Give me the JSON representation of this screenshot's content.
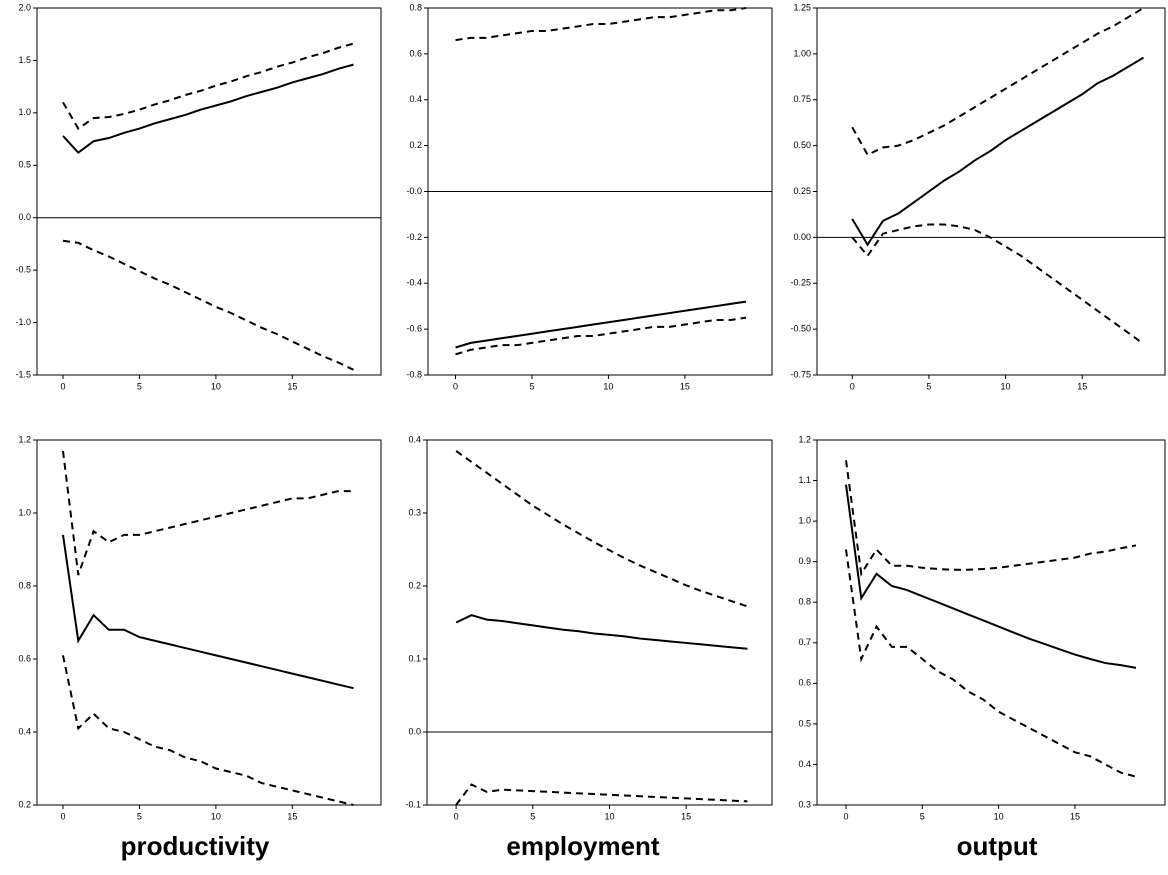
{
  "chart_data": [
    {
      "type": "line",
      "x": [
        0,
        1,
        2,
        3,
        4,
        5,
        6,
        7,
        8,
        9,
        10,
        11,
        12,
        13,
        14,
        15,
        16,
        17,
        18,
        19
      ],
      "xlim": [
        -1.7,
        20.8
      ],
      "xticks": [
        0,
        5,
        10,
        15
      ],
      "ylim": [
        -1.5,
        2.0
      ],
      "yticks": [
        -1.5,
        -0.5,
        {
          "value": -1.0,
          "label": "-1.0"
        },
        {
          "value": 0,
          "label": "0.0"
        },
        0.5,
        {
          "value": 1.0,
          "label": "1.0"
        },
        1.5,
        {
          "value": 2.0,
          "label": "2.0"
        }
      ],
      "zero_line": true,
      "series": [
        {
          "color": "#000000",
          "line_style": "solid",
          "values": [
            0.78,
            0.62,
            0.73,
            0.76,
            0.81,
            0.85,
            0.9,
            0.94,
            0.98,
            1.03,
            1.07,
            1.11,
            1.16,
            1.2,
            1.24,
            1.29,
            1.33,
            1.37,
            1.42,
            1.46
          ]
        },
        {
          "color": "#000000",
          "line_style": "dashed",
          "values": [
            1.1,
            0.85,
            0.95,
            0.96,
            0.99,
            1.03,
            1.08,
            1.12,
            1.17,
            1.21,
            1.26,
            1.3,
            1.35,
            1.39,
            1.44,
            1.48,
            1.53,
            1.57,
            1.62,
            1.66
          ]
        },
        {
          "color": "#000000",
          "line_style": "dashed",
          "values": [
            -0.22,
            -0.24,
            -0.31,
            -0.37,
            -0.44,
            -0.51,
            -0.58,
            -0.64,
            -0.71,
            -0.78,
            -0.85,
            -0.91,
            -0.98,
            -1.05,
            -1.11,
            -1.18,
            -1.25,
            -1.32,
            -1.38,
            -1.45
          ]
        }
      ]
    },
    {
      "type": "line",
      "x": [
        0,
        1,
        2,
        3,
        4,
        5,
        6,
        7,
        8,
        9,
        10,
        11,
        12,
        13,
        14,
        15,
        16,
        17,
        18,
        19
      ],
      "xlim": [
        -1.8,
        20.7
      ],
      "xticks": [
        0,
        5,
        10,
        15
      ],
      "ylim": [
        -0.8,
        0.8
      ],
      "yticks": [
        -0.8,
        -0.6,
        -0.4,
        -0.2,
        {
          "value": 0,
          "label": "-0.0"
        },
        0.2,
        0.4,
        0.6,
        0.8
      ],
      "zero_line": true,
      "series": [
        {
          "color": "#000000",
          "line_style": "solid",
          "values": [
            -0.68,
            -0.66,
            -0.65,
            -0.64,
            -0.63,
            -0.62,
            -0.61,
            -0.6,
            -0.59,
            -0.58,
            -0.57,
            -0.56,
            -0.55,
            -0.54,
            -0.53,
            -0.52,
            -0.51,
            -0.5,
            -0.49,
            -0.48
          ]
        },
        {
          "color": "#000000",
          "line_style": "dashed",
          "values": [
            0.66,
            0.67,
            0.67,
            0.68,
            0.69,
            0.7,
            0.7,
            0.71,
            0.72,
            0.73,
            0.73,
            0.74,
            0.75,
            0.76,
            0.76,
            0.77,
            0.78,
            0.79,
            0.79,
            0.8
          ]
        },
        {
          "color": "#000000",
          "line_style": "dashed",
          "values": [
            -0.71,
            -0.69,
            -0.68,
            -0.67,
            -0.67,
            -0.66,
            -0.65,
            -0.64,
            -0.63,
            -0.63,
            -0.62,
            -0.61,
            -0.6,
            -0.59,
            -0.59,
            -0.58,
            -0.57,
            -0.56,
            -0.56,
            -0.55
          ]
        }
      ]
    },
    {
      "type": "line",
      "x": [
        0,
        1,
        2,
        3,
        4,
        5,
        6,
        7,
        8,
        9,
        10,
        11,
        12,
        13,
        14,
        15,
        16,
        17,
        18,
        19
      ],
      "xlim": [
        -2.3,
        20.4
      ],
      "xticks": [
        0,
        5,
        10,
        15
      ],
      "ylim": [
        -0.75,
        1.25
      ],
      "yticks": [
        -0.75,
        {
          "value": -0.5,
          "label": "-0.50"
        },
        -0.25,
        {
          "value": 0,
          "label": "0.00"
        },
        0.25,
        {
          "value": 0.5,
          "label": "0.50"
        },
        0.75,
        {
          "value": 1.0,
          "label": "1.00"
        },
        1.25
      ],
      "zero_line": true,
      "series": [
        {
          "color": "#000000",
          "line_style": "solid",
          "values": [
            0.1,
            -0.04,
            0.09,
            0.13,
            0.19,
            0.25,
            0.31,
            0.36,
            0.42,
            0.47,
            0.53,
            0.58,
            0.63,
            0.68,
            0.73,
            0.78,
            0.84,
            0.88,
            0.93,
            0.98
          ]
        },
        {
          "color": "#000000",
          "line_style": "dashed",
          "values": [
            0.6,
            0.45,
            0.49,
            0.5,
            0.53,
            0.57,
            0.61,
            0.66,
            0.71,
            0.76,
            0.81,
            0.86,
            0.91,
            0.96,
            1.01,
            1.06,
            1.11,
            1.15,
            1.2,
            1.25
          ]
        },
        {
          "color": "#000000",
          "line_style": "dashed",
          "values": [
            0.0,
            -0.1,
            0.02,
            0.04,
            0.06,
            0.07,
            0.07,
            0.06,
            0.04,
            0.0,
            -0.05,
            -0.1,
            -0.16,
            -0.22,
            -0.28,
            -0.34,
            -0.4,
            -0.46,
            -0.52,
            -0.58
          ]
        }
      ]
    },
    {
      "type": "line",
      "x": [
        0,
        1,
        2,
        3,
        4,
        5,
        6,
        7,
        8,
        9,
        10,
        11,
        12,
        13,
        14,
        15,
        16,
        17,
        18,
        19
      ],
      "xlim": [
        -1.7,
        20.8
      ],
      "xticks": [
        0,
        5,
        10,
        15
      ],
      "ylim": [
        0.2,
        1.2
      ],
      "yticks": [
        0.2,
        0.4,
        0.6,
        0.8,
        {
          "value": 1.0,
          "label": "1.0"
        },
        1.2
      ],
      "zero_line": true,
      "series": [
        {
          "color": "#000000",
          "line_style": "solid",
          "values": [
            0.94,
            0.65,
            0.72,
            0.68,
            0.68,
            0.66,
            0.65,
            0.64,
            0.63,
            0.62,
            0.61,
            0.6,
            0.59,
            0.58,
            0.57,
            0.56,
            0.55,
            0.54,
            0.53,
            0.52
          ]
        },
        {
          "color": "#000000",
          "line_style": "dashed",
          "values": [
            1.17,
            0.83,
            0.95,
            0.92,
            0.94,
            0.94,
            0.95,
            0.96,
            0.97,
            0.98,
            0.99,
            1.0,
            1.01,
            1.02,
            1.03,
            1.04,
            1.04,
            1.05,
            1.06,
            1.06
          ]
        },
        {
          "color": "#000000",
          "line_style": "dashed",
          "values": [
            0.61,
            0.41,
            0.45,
            0.41,
            0.4,
            0.38,
            0.36,
            0.35,
            0.33,
            0.32,
            0.3,
            0.29,
            0.28,
            0.26,
            0.25,
            0.24,
            0.23,
            0.22,
            0.21,
            0.2
          ]
        }
      ]
    },
    {
      "type": "line",
      "x": [
        0,
        1,
        2,
        3,
        4,
        5,
        6,
        7,
        8,
        9,
        10,
        11,
        12,
        13,
        14,
        15,
        16,
        17,
        18,
        19
      ],
      "xlim": [
        -1.9,
        20.6
      ],
      "xticks": [
        0,
        5,
        10,
        15
      ],
      "ylim": [
        -0.1,
        0.4
      ],
      "yticks": [
        -0.1,
        {
          "value": 0,
          "label": "0.0"
        },
        0.1,
        0.2,
        0.3,
        0.4
      ],
      "zero_line": true,
      "series": [
        {
          "color": "#000000",
          "line_style": "solid",
          "values": [
            0.15,
            0.16,
            0.154,
            0.152,
            0.149,
            0.146,
            0.143,
            0.14,
            0.138,
            0.135,
            0.133,
            0.131,
            0.128,
            0.126,
            0.124,
            0.122,
            0.12,
            0.118,
            0.116,
            0.114
          ]
        },
        {
          "color": "#000000",
          "line_style": "dashed",
          "values": [
            0.385,
            0.37,
            0.355,
            0.34,
            0.325,
            0.31,
            0.297,
            0.284,
            0.272,
            0.26,
            0.249,
            0.238,
            0.228,
            0.219,
            0.21,
            0.201,
            0.193,
            0.186,
            0.179,
            0.172
          ]
        },
        {
          "color": "#000000",
          "line_style": "dashed",
          "values": [
            -0.1,
            -0.072,
            -0.082,
            -0.079,
            -0.08,
            -0.081,
            -0.082,
            -0.083,
            -0.084,
            -0.085,
            -0.086,
            -0.087,
            -0.088,
            -0.089,
            -0.09,
            -0.091,
            -0.092,
            -0.093,
            -0.094,
            -0.095
          ]
        }
      ]
    },
    {
      "type": "line",
      "x": [
        0,
        1,
        2,
        3,
        4,
        5,
        6,
        7,
        8,
        9,
        10,
        11,
        12,
        13,
        14,
        15,
        16,
        17,
        18,
        19
      ],
      "xlim": [
        -1.9,
        20.9
      ],
      "xticks": [
        0,
        5,
        10,
        15
      ],
      "ylim": [
        0.3,
        1.2
      ],
      "yticks": [
        0.3,
        0.4,
        0.5,
        0.6,
        0.7,
        0.8,
        0.9,
        {
          "value": 1.0,
          "label": "1.0"
        },
        1.1,
        1.2
      ],
      "zero_line": true,
      "series": [
        {
          "color": "#000000",
          "line_style": "solid",
          "values": [
            1.09,
            0.81,
            0.87,
            0.84,
            0.83,
            0.815,
            0.8,
            0.785,
            0.77,
            0.755,
            0.74,
            0.725,
            0.71,
            0.697,
            0.684,
            0.671,
            0.66,
            0.65,
            0.645,
            0.638
          ]
        },
        {
          "color": "#000000",
          "line_style": "dashed",
          "values": [
            1.15,
            0.87,
            0.93,
            0.89,
            0.89,
            0.885,
            0.882,
            0.88,
            0.88,
            0.882,
            0.885,
            0.89,
            0.895,
            0.9,
            0.905,
            0.91,
            0.92,
            0.925,
            0.933,
            0.94
          ]
        },
        {
          "color": "#000000",
          "line_style": "dashed",
          "values": [
            0.93,
            0.66,
            0.74,
            0.69,
            0.69,
            0.66,
            0.63,
            0.61,
            0.58,
            0.56,
            0.53,
            0.51,
            0.49,
            0.47,
            0.45,
            0.43,
            0.42,
            0.4,
            0.38,
            0.37
          ]
        }
      ]
    }
  ],
  "column_labels": [
    "productivity",
    "employment",
    "output"
  ]
}
